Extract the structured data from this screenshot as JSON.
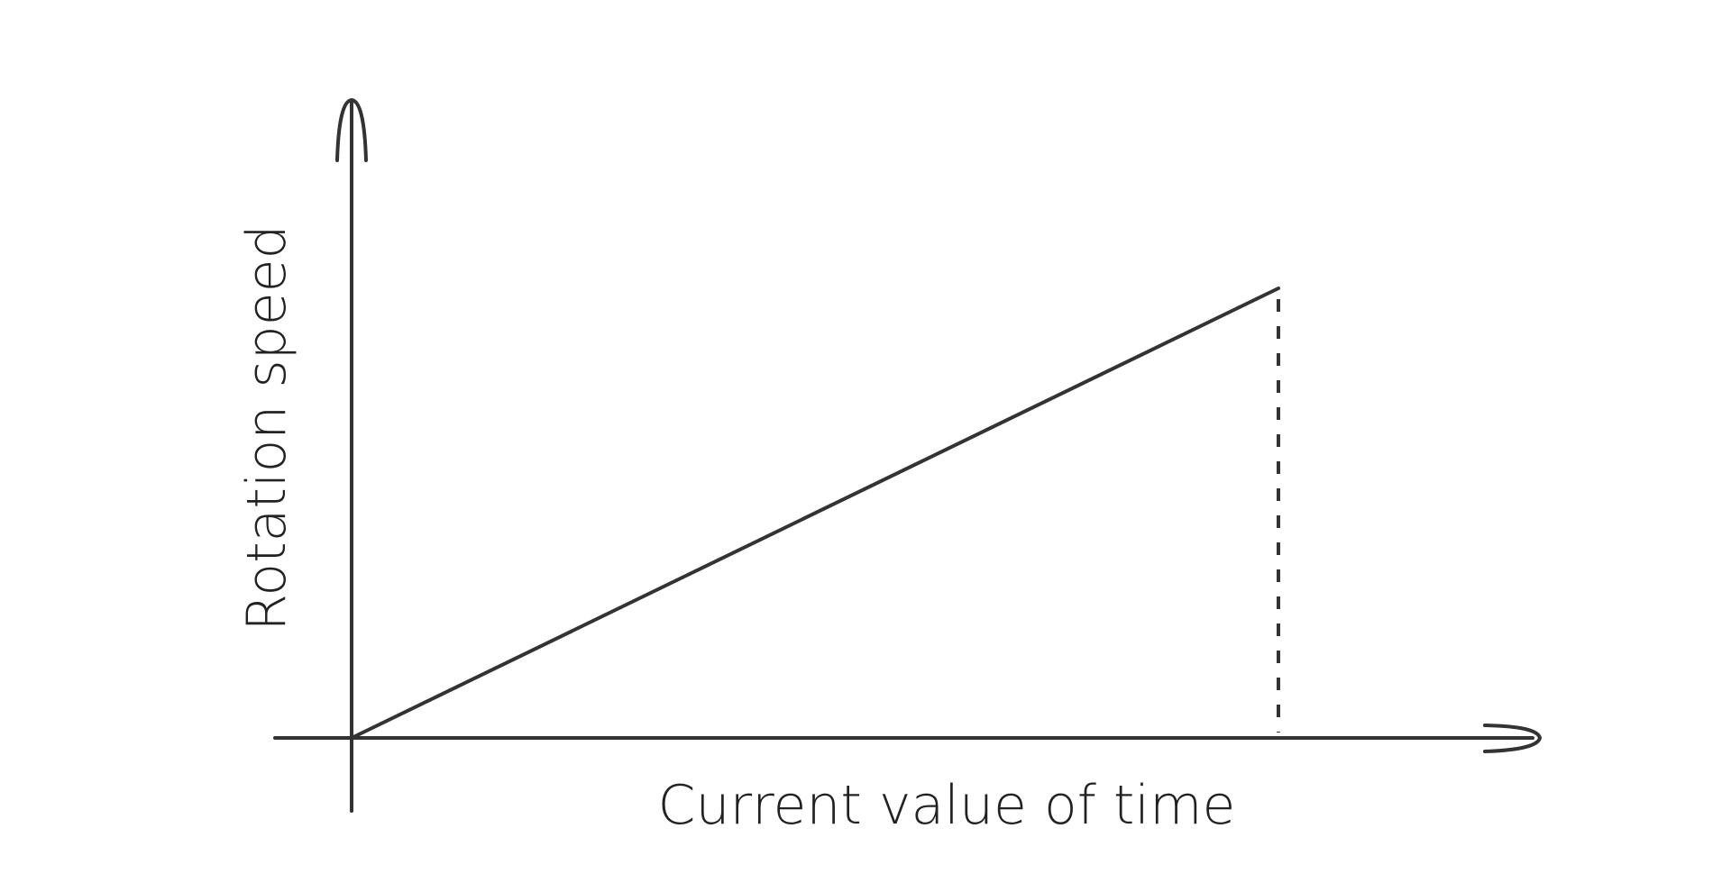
{
  "chart_data": {
    "type": "line",
    "title": "",
    "xlabel": "Current value of time",
    "ylabel": "Rotation speed",
    "grid": false,
    "legend": "none",
    "ticks": "none",
    "series": [
      {
        "x": [
          0,
          1
        ],
        "y": [
          0,
          1
        ]
      }
    ],
    "marker_line": {
      "x": 1,
      "style": "dashed",
      "from_y": 0,
      "to_y": 1
    },
    "colors": {
      "line": "#333333",
      "axis": "#333333",
      "text": "#222222"
    }
  }
}
